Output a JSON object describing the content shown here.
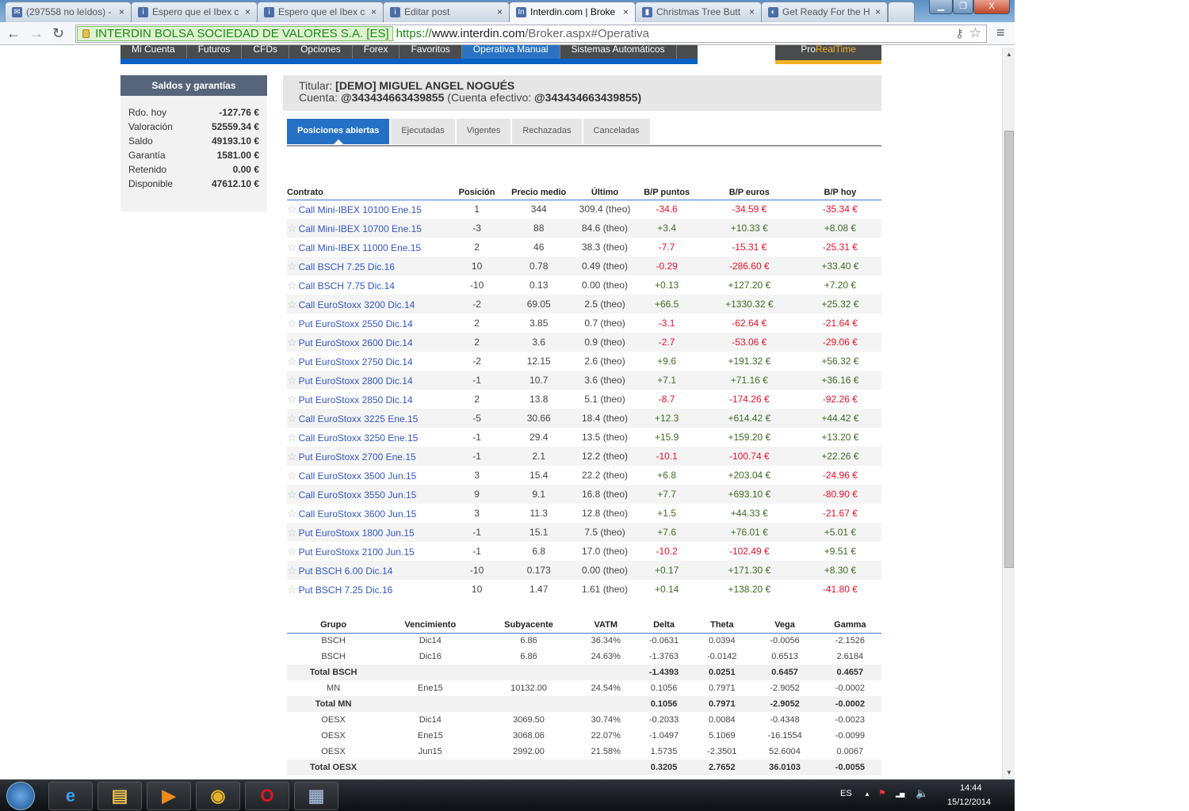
{
  "browser": {
    "tabs": [
      {
        "label": "(297558 no leídos) -",
        "icon": "mail-icon"
      },
      {
        "label": "Espero que el Ibex c",
        "icon": "blog-icon"
      },
      {
        "label": "Espero que el Ibex c",
        "icon": "blog-icon"
      },
      {
        "label": "Editar post",
        "icon": "blog-icon"
      },
      {
        "label": "Interdin.com | Broke",
        "icon": "interdin-icon",
        "active": true
      },
      {
        "label": "Christmas Tree Butt",
        "icon": "chart-icon"
      },
      {
        "label": "Get Ready For the H",
        "icon": "site-icon"
      }
    ],
    "ev_cert": "INTERDIN BOLSA SOCIEDAD DE VALORES S.A. [ES]",
    "url_scheme": "https://",
    "url_host": "www.interdin.com",
    "url_path": "/Broker.aspx#Operativa"
  },
  "nav": {
    "items": [
      "Mi Cuenta",
      "Futuros",
      "CFDs",
      "Opciones",
      "Forex",
      "Favoritos",
      "Operativa Manual",
      "Sistemas Automáticos"
    ],
    "active": 6,
    "pro_a": "Pro",
    "pro_b": "RealTime"
  },
  "sidebar": {
    "title": "Saldos y garantías",
    "rows": [
      {
        "label": "Rdo. hoy",
        "value": "-127.76 €"
      },
      {
        "label": "Valoración",
        "value": "52559.34 €"
      },
      {
        "label": "Saldo",
        "value": "49193.10 €"
      },
      {
        "label": "Garantía",
        "value": "1581.00 €"
      },
      {
        "label": "Retenido",
        "value": "0.00 €"
      },
      {
        "label": "Disponible",
        "value": "47612.10 €"
      }
    ]
  },
  "account": {
    "titular_label": "Titular:",
    "titular": "[DEMO] MIGUEL ANGEL NOGUÉS",
    "cuenta_label": "Cuenta:",
    "cuenta": "@343434663439855",
    "efectivo_label": "(Cuenta efectivo:",
    "efectivo": "@343434663439855)"
  },
  "order_tabs": [
    "Posiciones abiertas",
    "Ejecutadas",
    "Vigentes",
    "Rechazadas",
    "Canceladas"
  ],
  "positions": {
    "columns": [
      "Contrato",
      "Posición",
      "Precio medio",
      "Último",
      "B/P puntos",
      "B/P euros",
      "B/P hoy"
    ],
    "rows": [
      [
        "Call Mini-IBEX 10100 Ene.15",
        "1",
        "344",
        "309.4 (theo)",
        "-34.6",
        "-34.59 €",
        "-35.34 €"
      ],
      [
        "Call Mini-IBEX 10700 Ene.15",
        "-3",
        "88",
        "84.6 (theo)",
        "+3.4",
        "+10.33 €",
        "+8.08 €"
      ],
      [
        "Call Mini-IBEX 11000 Ene.15",
        "2",
        "46",
        "38.3 (theo)",
        "-7.7",
        "-15.31 €",
        "-25.31 €"
      ],
      [
        "Call BSCH 7.25 Dic.16",
        "10",
        "0.78",
        "0.49 (theo)",
        "-0.29",
        "-286.60 €",
        "+33.40 €"
      ],
      [
        "Call BSCH 7.75 Dic.14",
        "-10",
        "0.13",
        "0.00 (theo)",
        "+0.13",
        "+127.20 €",
        "+7.20 €"
      ],
      [
        "Call EuroStoxx 3200 Dic.14",
        "-2",
        "69.05",
        "2.5 (theo)",
        "+66.5",
        "+1330.32 €",
        "+25.32 €"
      ],
      [
        "Put EuroStoxx 2550 Dic.14",
        "2",
        "3.85",
        "0.7 (theo)",
        "-3.1",
        "-62.64 €",
        "-21.64 €"
      ],
      [
        "Put EuroStoxx 2600 Dic.14",
        "2",
        "3.6",
        "0.9 (theo)",
        "-2.7",
        "-53.06 €",
        "-29.06 €"
      ],
      [
        "Put EuroStoxx 2750 Dic.14",
        "-2",
        "12.15",
        "2.6 (theo)",
        "+9.6",
        "+191.32 €",
        "+56.32 €"
      ],
      [
        "Put EuroStoxx 2800 Dic.14",
        "-1",
        "10.7",
        "3.6 (theo)",
        "+7.1",
        "+71.16 €",
        "+36.16 €"
      ],
      [
        "Put EuroStoxx 2850 Dic.14",
        "2",
        "13.8",
        "5.1 (theo)",
        "-8.7",
        "-174.26 €",
        "-92.26 €"
      ],
      [
        "Call EuroStoxx 3225 Ene.15",
        "-5",
        "30.66",
        "18.4 (theo)",
        "+12.3",
        "+614.42 €",
        "+44.42 €"
      ],
      [
        "Call EuroStoxx 3250 Ene.15",
        "-1",
        "29.4",
        "13.5 (theo)",
        "+15.9",
        "+159.20 €",
        "+13.20 €"
      ],
      [
        "Put EuroStoxx 2700 Ene.15",
        "-1",
        "2.1",
        "12.2 (theo)",
        "-10.1",
        "-100.74 €",
        "+22.26 €"
      ],
      [
        "Call EuroStoxx 3500 Jun.15",
        "3",
        "15.4",
        "22.2 (theo)",
        "+6.8",
        "+203.04 €",
        "-24.96 €"
      ],
      [
        "Call EuroStoxx 3550 Jun.15",
        "9",
        "9.1",
        "16.8 (theo)",
        "+7.7",
        "+693.10 €",
        "-80.90 €"
      ],
      [
        "Call EuroStoxx 3600 Jun.15",
        "3",
        "11.3",
        "12.8 (theo)",
        "+1.5",
        "+44.33 €",
        "-21.67 €"
      ],
      [
        "Put EuroStoxx 1800 Jun.15",
        "-1",
        "15.1",
        "7.5 (theo)",
        "+7.6",
        "+76.01 €",
        "+5.01 €"
      ],
      [
        "Put EuroStoxx 2100 Jun.15",
        "-1",
        "6.8",
        "17.0 (theo)",
        "-10.2",
        "-102.49 €",
        "+9.51 €"
      ],
      [
        "Put BSCH 6.00 Dic.14",
        "-10",
        "0.173",
        "0.00 (theo)",
        "+0.17",
        "+171.30 €",
        "+8.30 €"
      ],
      [
        "Put BSCH 7.25 Dic.16",
        "10",
        "1.47",
        "1.61 (theo)",
        "+0.14",
        "+138.20 €",
        "-41.80 €"
      ]
    ]
  },
  "greeks": {
    "columns": [
      "Grupo",
      "Vencimiento",
      "Subyacente",
      "VATM",
      "Delta",
      "Theta",
      "Vega",
      "Gamma"
    ],
    "rows": [
      [
        "BSCH",
        "Dic14",
        "6.86",
        "36.34%",
        "-0.0631",
        "0.0394",
        "-0.0056",
        "-2.1526"
      ],
      [
        "BSCH",
        "Dic16",
        "6.86",
        "24.63%",
        "-1.3763",
        "-0.0142",
        "0.6513",
        "2.6184"
      ],
      [
        "Total BSCH",
        "",
        "",
        "",
        "-1.4393",
        "0.0251",
        "0.6457",
        "0.4657"
      ],
      [
        "MN",
        "Ene15",
        "10132.00",
        "24.54%",
        "0.1056",
        "0.7971",
        "-2.9052",
        "-0.0002"
      ],
      [
        "Total MN",
        "",
        "",
        "",
        "0.1056",
        "0.7971",
        "-2.9052",
        "-0.0002"
      ],
      [
        "OESX",
        "Dic14",
        "3069.50",
        "30.74%",
        "-0.2033",
        "0.0084",
        "-0.4348",
        "-0.0023"
      ],
      [
        "OESX",
        "Ene15",
        "3068.06",
        "22.07%",
        "-1.0497",
        "5.1069",
        "-16.1554",
        "-0.0099"
      ],
      [
        "OESX",
        "Jun15",
        "2992.00",
        "21.58%",
        "1.5735",
        "-2.3501",
        "52.6004",
        "0.0067"
      ],
      [
        "Total OESX",
        "",
        "",
        "",
        "0.3205",
        "2.7652",
        "36.0103",
        "-0.0055"
      ]
    ]
  },
  "taskbar": {
    "apps": [
      "internet-explorer-icon",
      "file-explorer-icon",
      "media-player-icon",
      "chrome-icon",
      "opera-icon",
      "calculator-icon"
    ],
    "lang": "ES",
    "time": "14:44",
    "date": "15/12/2014"
  },
  "colors": {
    "accent": "#2370c5",
    "negative": "#e8102a",
    "positive": "#3f6b23",
    "link": "#3356c8"
  }
}
